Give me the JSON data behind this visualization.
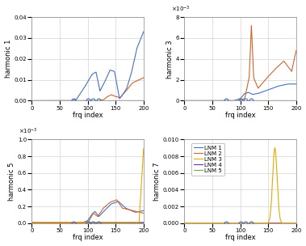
{
  "xlabel": "frq index",
  "xlim": [
    0,
    200
  ],
  "x_ticks": [
    0,
    50,
    100,
    150,
    200
  ],
  "colors": {
    "LNM1": "#4472c4",
    "LNM2": "#d4622a",
    "LNM3": "#e8a800",
    "LNM4": "#7030a0",
    "LNM5": "#7faa3b"
  },
  "legend_entries": [
    "LNM 1",
    "LNM 2",
    "LNM 3",
    "LNM 4",
    "LNM 5"
  ],
  "background": "#ffffff",
  "grid_color": "#d3d3d3"
}
